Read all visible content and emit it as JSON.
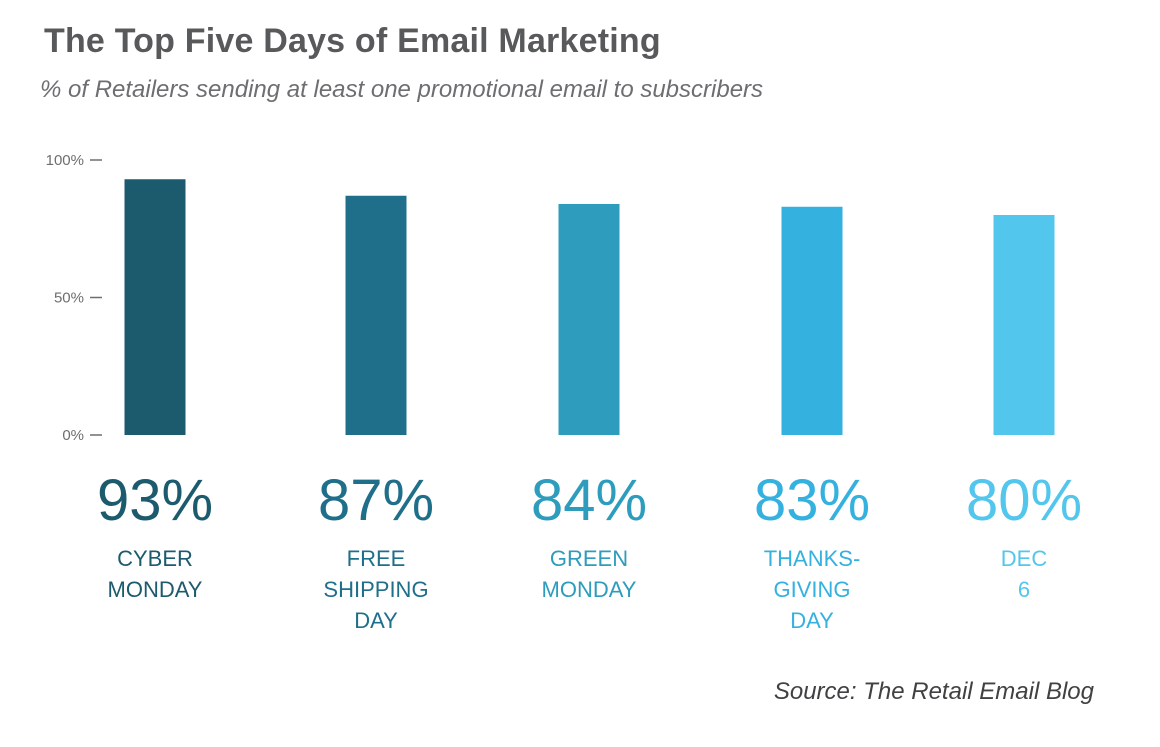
{
  "title": "The Top Five Days of Email Marketing",
  "subtitle": "% of Retailers sending at least one promotional email to subscribers",
  "source": "Source: The Retail Email Blog",
  "chart_data": {
    "type": "bar",
    "categories": [
      [
        "CYBER",
        "MONDAY"
      ],
      [
        "FREE",
        "SHIPPING",
        "DAY"
      ],
      [
        "GREEN",
        "MONDAY"
      ],
      [
        "THANKS-",
        "GIVING",
        "DAY"
      ],
      [
        "DEC",
        "6"
      ]
    ],
    "values": [
      93,
      87,
      84,
      83,
      80
    ],
    "value_labels": [
      "93%",
      "87%",
      "84%",
      "83%",
      "80%"
    ],
    "colors": [
      "#1c5a6e",
      "#1f6f8b",
      "#2e9cbc",
      "#34b1df",
      "#52c6ec"
    ],
    "ylim": [
      0,
      100
    ],
    "yticks": [
      0,
      50,
      100
    ],
    "ytick_labels": [
      "0%",
      "50%",
      "100%"
    ],
    "grid": false,
    "legend": "none"
  }
}
